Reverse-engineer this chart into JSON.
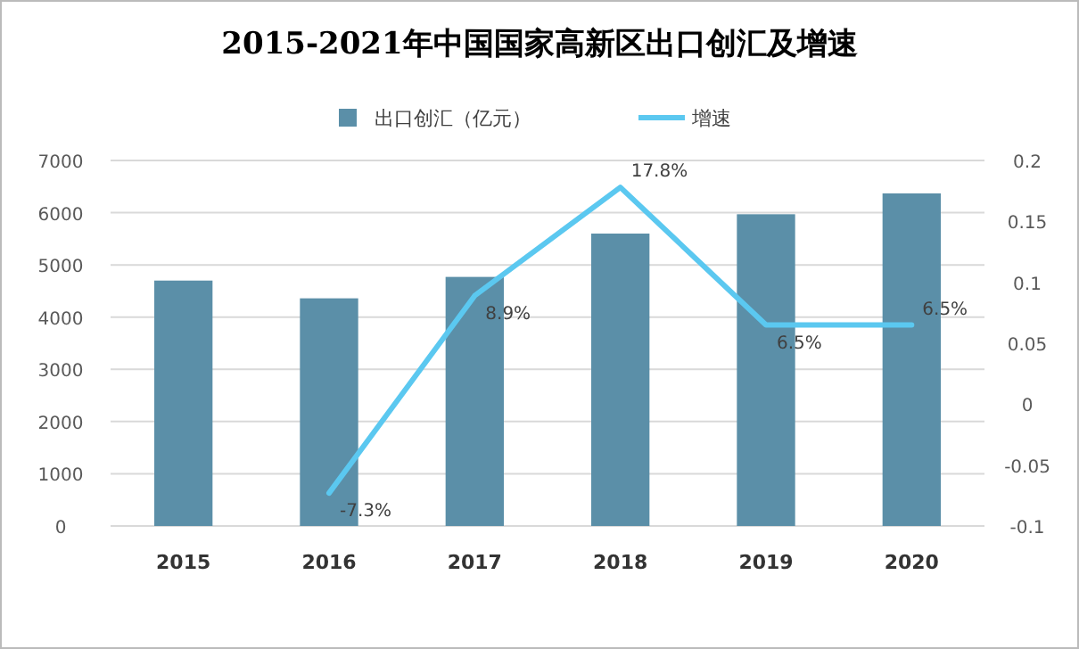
{
  "chart_data": {
    "type": "bar",
    "title": "2015-2021年中国国家高新区出口创汇及增速",
    "categories": [
      "2015",
      "2016",
      "2017",
      "2018",
      "2019",
      "2020"
    ],
    "series": [
      {
        "name": "出口创汇（亿元）",
        "color": "#5b8fa8",
        "values": [
          4700,
          4360,
          4770,
          5600,
          5970,
          6370
        ]
      },
      {
        "name": "增速",
        "type": "line",
        "axis": "y2",
        "color": "#5bc8f0",
        "values": [
          null,
          -0.073,
          0.089,
          0.178,
          0.065,
          0.065
        ],
        "value_labels": [
          null,
          "-7.3%",
          "8.9%",
          "17.8%",
          "6.5%",
          "6.5%"
        ]
      }
    ],
    "ylim": [
      0,
      7000
    ],
    "yticks": [
      0,
      1000,
      2000,
      3000,
      4000,
      5000,
      6000,
      7000
    ],
    "y2lim": [
      -0.1,
      0.2
    ],
    "y2ticks": [
      -0.1,
      -0.05,
      0,
      0.05,
      0.1,
      0.15,
      0.2
    ],
    "grid": "y",
    "legend": "top",
    "marker": "none"
  }
}
